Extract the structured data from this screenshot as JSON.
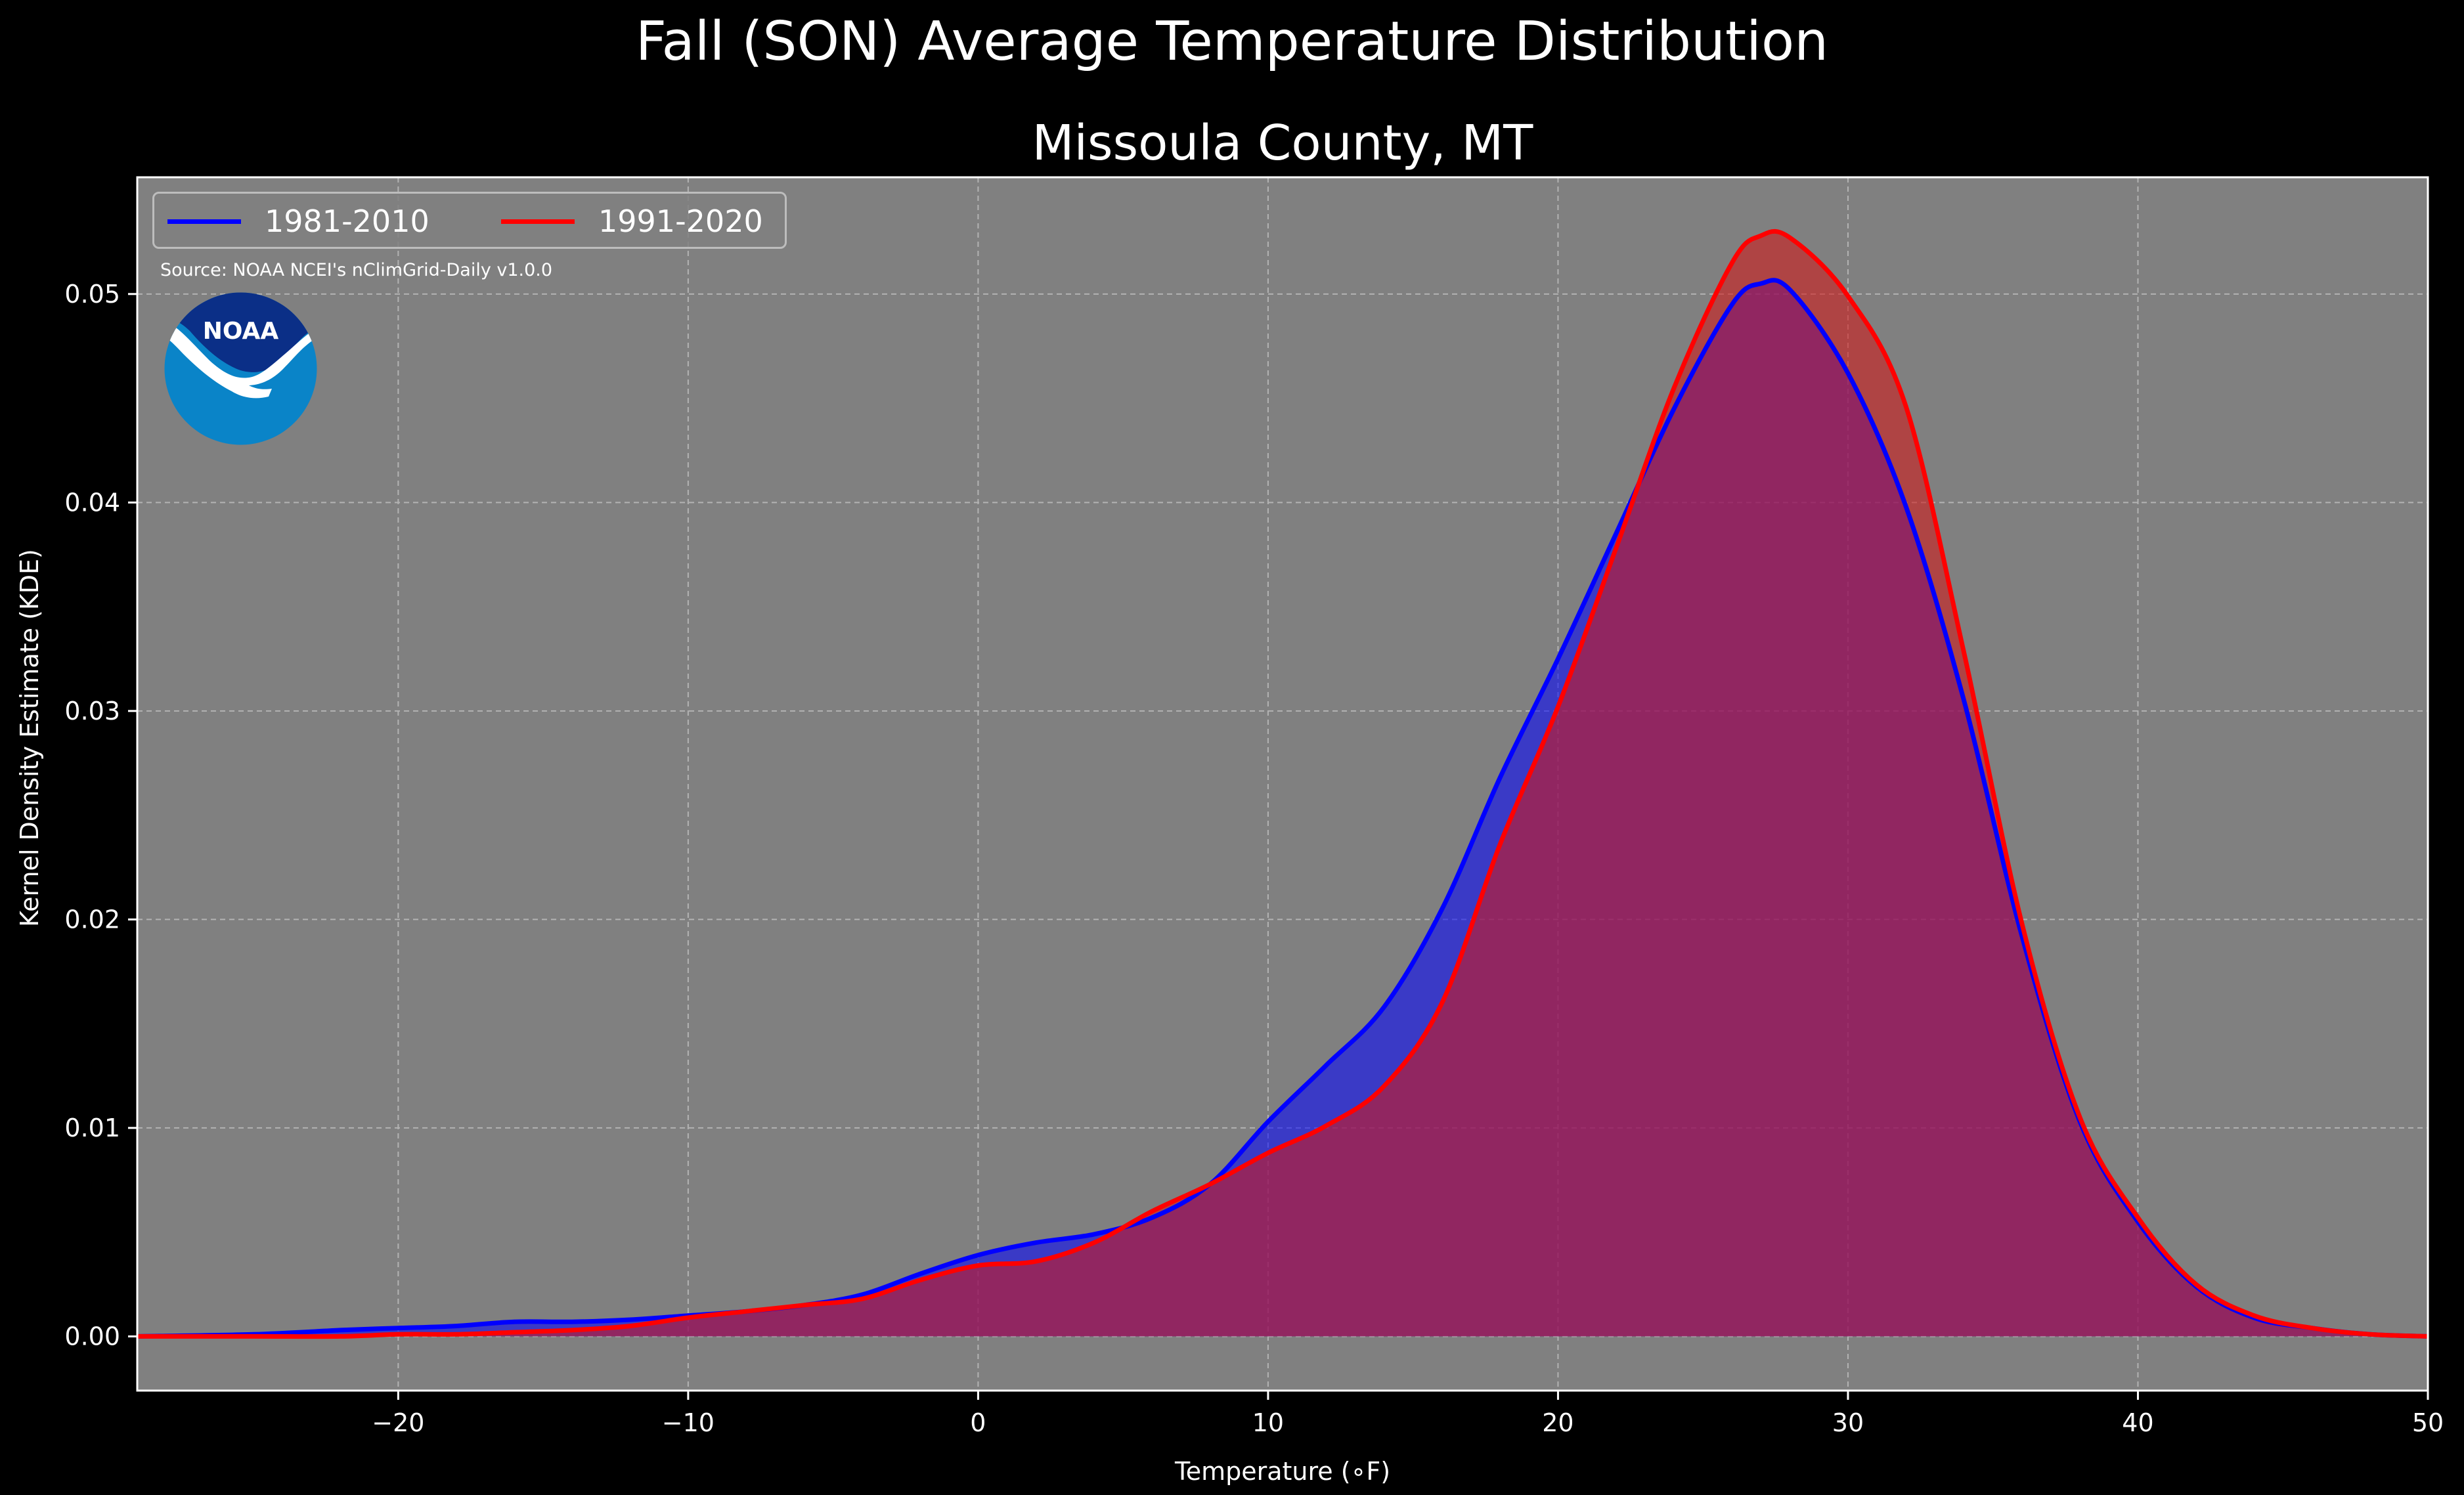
{
  "chart_data": {
    "type": "area",
    "suptitle": "Fall (SON) Average Temperature Distribution",
    "title": "Missoula County, MT",
    "xlabel": "Temperature (∘F)",
    "ylabel": "Kernel Density Estimate (KDE)",
    "xlim": [
      -29,
      50
    ],
    "ylim": [
      -0.0026,
      0.0556
    ],
    "xticks": [
      -20,
      -10,
      0,
      10,
      20,
      30,
      40,
      50
    ],
    "xtick_labels": [
      "−20",
      "−10",
      "0",
      "10",
      "20",
      "30",
      "40",
      "50"
    ],
    "yticks": [
      0.0,
      0.01,
      0.02,
      0.03,
      0.04,
      0.05
    ],
    "ytick_labels": [
      "0.00",
      "0.01",
      "0.02",
      "0.03",
      "0.04",
      "0.05"
    ],
    "grid": true,
    "legend_position": "top-left",
    "source_note": "Source: NOAA NCEI's nClimGrid-Daily v1.0.0",
    "logo_text": "NOAA",
    "series": [
      {
        "name": "1981-2010",
        "color": "#0000ff",
        "fill": "#0000ff",
        "x": [
          -29,
          -25,
          -22,
          -20,
          -18,
          -16,
          -14,
          -12,
          -10,
          -8,
          -6,
          -4,
          -2,
          0,
          2,
          4,
          6,
          8,
          10,
          12,
          14,
          16,
          18,
          20,
          22,
          24,
          26,
          27,
          28,
          30,
          32,
          34,
          36,
          38,
          40,
          42,
          44,
          46,
          48,
          50
        ],
        "y": [
          0.0,
          0.0001,
          0.0003,
          0.0004,
          0.0005,
          0.0007,
          0.0007,
          0.0008,
          0.001,
          0.0012,
          0.0015,
          0.002,
          0.003,
          0.0039,
          0.0045,
          0.0049,
          0.0057,
          0.0073,
          0.0103,
          0.013,
          0.0158,
          0.0205,
          0.0268,
          0.0325,
          0.0385,
          0.0445,
          0.0495,
          0.0505,
          0.0502,
          0.0462,
          0.0398,
          0.0305,
          0.0192,
          0.0103,
          0.0055,
          0.0024,
          0.0009,
          0.0004,
          0.0001,
          0.0
        ]
      },
      {
        "name": "1991-2020",
        "color": "#ff0000",
        "fill": "#d01818",
        "x": [
          -29,
          -25,
          -22,
          -20,
          -18,
          -16,
          -14,
          -12,
          -10,
          -8,
          -6,
          -4,
          -2,
          0,
          2,
          4,
          6,
          8,
          10,
          12,
          14,
          16,
          18,
          20,
          22,
          24,
          26,
          27,
          28,
          30,
          32,
          34,
          36,
          38,
          40,
          42,
          44,
          46,
          48,
          50
        ],
        "y": [
          0.0,
          0.0,
          0.0,
          0.0001,
          0.0001,
          0.0002,
          0.0003,
          0.0005,
          0.0009,
          0.0012,
          0.0015,
          0.0018,
          0.0027,
          0.0034,
          0.0036,
          0.0045,
          0.006,
          0.0073,
          0.0088,
          0.0101,
          0.012,
          0.016,
          0.0236,
          0.0302,
          0.0378,
          0.0455,
          0.0515,
          0.0528,
          0.0527,
          0.0499,
          0.0446,
          0.0328,
          0.0198,
          0.0105,
          0.0057,
          0.0025,
          0.001,
          0.0004,
          0.0001,
          0.0
        ]
      }
    ]
  }
}
